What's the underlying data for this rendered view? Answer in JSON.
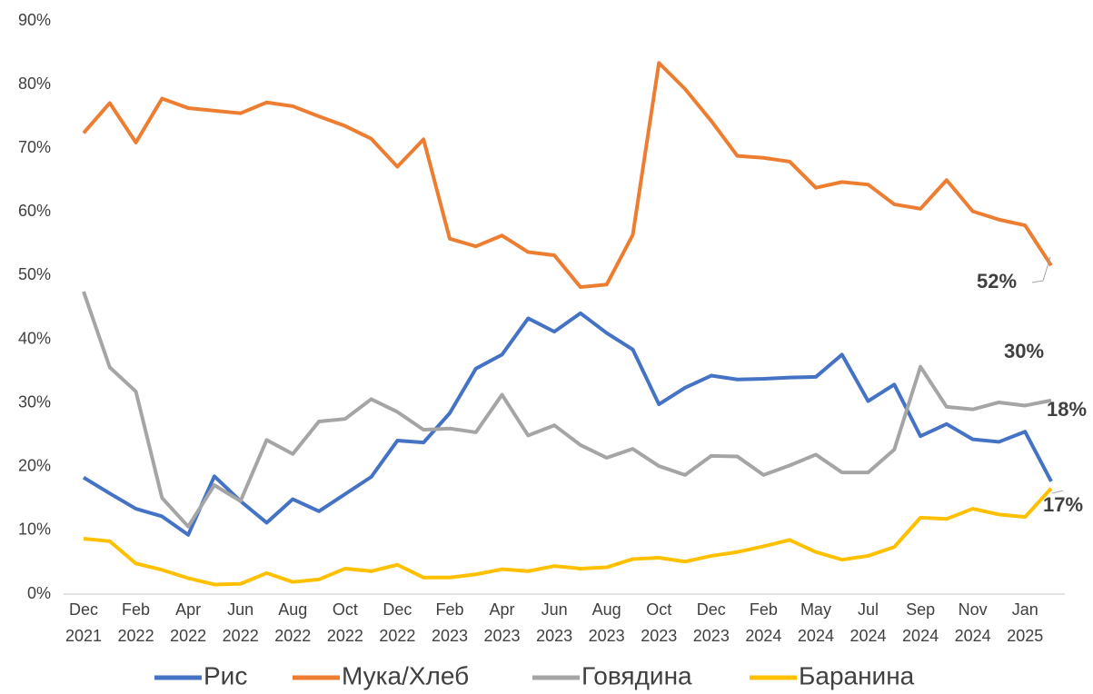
{
  "chart_data": {
    "type": "line",
    "categories": [
      "Dec 2021",
      null,
      "Feb 2022",
      null,
      "Apr 2022",
      null,
      "Jun 2022",
      null,
      "Aug 2022",
      null,
      "Oct 2022",
      null,
      "Dec 2022",
      null,
      "Feb 2023",
      null,
      "Apr 2023",
      null,
      "Jun 2023",
      null,
      "Aug 2023",
      null,
      "Oct 2023",
      null,
      "Dec 2023",
      null,
      "Feb 2024",
      null,
      "May 2024",
      null,
      "Jul 2024",
      null,
      "Sep 2024",
      null,
      "Nov 2024",
      null,
      "Jan 2025",
      null
    ],
    "series": [
      {
        "name": "Рис",
        "color": "#4472c4",
        "values": [
          18.3,
          15.8,
          13.4,
          12.2,
          9.3,
          18.5,
          14.6,
          11.2,
          14.9,
          13.0,
          15.7,
          18.4,
          24.1,
          23.8,
          28.4,
          35.4,
          37.6,
          43.3,
          41.2,
          44.1,
          41.0,
          38.4,
          29.8,
          32.4,
          34.3,
          33.7,
          33.8,
          34.0,
          34.1,
          37.6,
          30.3,
          32.9,
          24.8,
          26.7,
          24.3,
          23.9,
          25.5,
          17.7
        ],
        "value_labels": [
          null,
          null,
          null,
          null,
          null,
          null,
          null,
          null,
          null,
          null,
          null,
          null,
          null,
          null,
          null,
          null,
          null,
          null,
          null,
          null,
          null,
          null,
          null,
          null,
          null,
          null,
          null,
          null,
          null,
          null,
          null,
          null,
          null,
          null,
          null,
          null,
          null,
          "18%"
        ]
      },
      {
        "name": "Мука/Хлеб",
        "color": "#ed7d31",
        "values": [
          72.4,
          77.1,
          70.9,
          77.8,
          76.3,
          75.9,
          75.5,
          77.2,
          76.6,
          75.0,
          73.5,
          71.5,
          67.1,
          71.4,
          55.8,
          54.6,
          56.3,
          53.7,
          53.2,
          48.2,
          48.6,
          56.4,
          83.4,
          79.3,
          74.3,
          68.8,
          68.5,
          67.9,
          63.8,
          64.7,
          64.3,
          61.2,
          60.5,
          65.0,
          60.1,
          58.8,
          57.9,
          51.6
        ],
        "value_labels": [
          null,
          null,
          null,
          null,
          null,
          null,
          null,
          null,
          null,
          null,
          null,
          null,
          null,
          null,
          null,
          null,
          null,
          null,
          null,
          null,
          null,
          null,
          null,
          null,
          null,
          null,
          null,
          null,
          null,
          null,
          null,
          null,
          null,
          null,
          null,
          null,
          null,
          "52%"
        ]
      },
      {
        "name": "Говядина",
        "color": "#a5a5a5",
        "values": [
          47.5,
          35.6,
          31.8,
          15.1,
          10.6,
          17.1,
          14.6,
          24.2,
          22.0,
          27.1,
          27.5,
          30.6,
          28.6,
          25.8,
          26.0,
          25.4,
          31.3,
          24.9,
          26.5,
          23.4,
          21.4,
          22.8,
          20.1,
          18.7,
          21.7,
          21.6,
          18.7,
          20.2,
          21.9,
          19.1,
          19.1,
          22.7,
          35.7,
          29.4,
          29.0,
          30.1,
          29.6,
          30.4
        ],
        "value_labels": [
          null,
          null,
          null,
          null,
          null,
          null,
          null,
          null,
          null,
          null,
          null,
          null,
          null,
          null,
          null,
          null,
          null,
          null,
          null,
          null,
          null,
          null,
          null,
          null,
          null,
          null,
          null,
          null,
          null,
          null,
          null,
          null,
          null,
          null,
          null,
          null,
          null,
          "30%"
        ]
      },
      {
        "name": "Баранина",
        "color": "#ffc000",
        "values": [
          8.7,
          8.3,
          4.8,
          3.8,
          2.5,
          1.5,
          1.6,
          3.3,
          1.9,
          2.3,
          4.0,
          3.6,
          4.6,
          2.6,
          2.6,
          3.1,
          3.9,
          3.6,
          4.4,
          4.0,
          4.2,
          5.5,
          5.7,
          5.1,
          6.0,
          6.6,
          7.5,
          8.5,
          6.6,
          5.4,
          6.0,
          7.4,
          12.0,
          11.8,
          13.4,
          12.5,
          12.1,
          16.6
        ],
        "value_labels": [
          null,
          null,
          null,
          null,
          null,
          null,
          null,
          null,
          null,
          null,
          null,
          null,
          null,
          null,
          null,
          null,
          null,
          null,
          null,
          null,
          null,
          null,
          null,
          null,
          null,
          null,
          null,
          null,
          null,
          null,
          null,
          null,
          null,
          null,
          null,
          null,
          null,
          "17%"
        ]
      }
    ],
    "ylim": [
      0,
      90
    ],
    "yticks": [
      {
        "value": 0,
        "label": "0%"
      },
      {
        "value": 10,
        "label": "10%"
      },
      {
        "value": 20,
        "label": "20%"
      },
      {
        "value": 30,
        "label": "30%"
      },
      {
        "value": 40,
        "label": "40%"
      },
      {
        "value": 50,
        "label": "50%"
      },
      {
        "value": 60,
        "label": "60%"
      },
      {
        "value": 70,
        "label": "70%"
      },
      {
        "value": 80,
        "label": "80%"
      },
      {
        "value": 90,
        "label": "90%"
      }
    ],
    "legend": "bottom"
  }
}
